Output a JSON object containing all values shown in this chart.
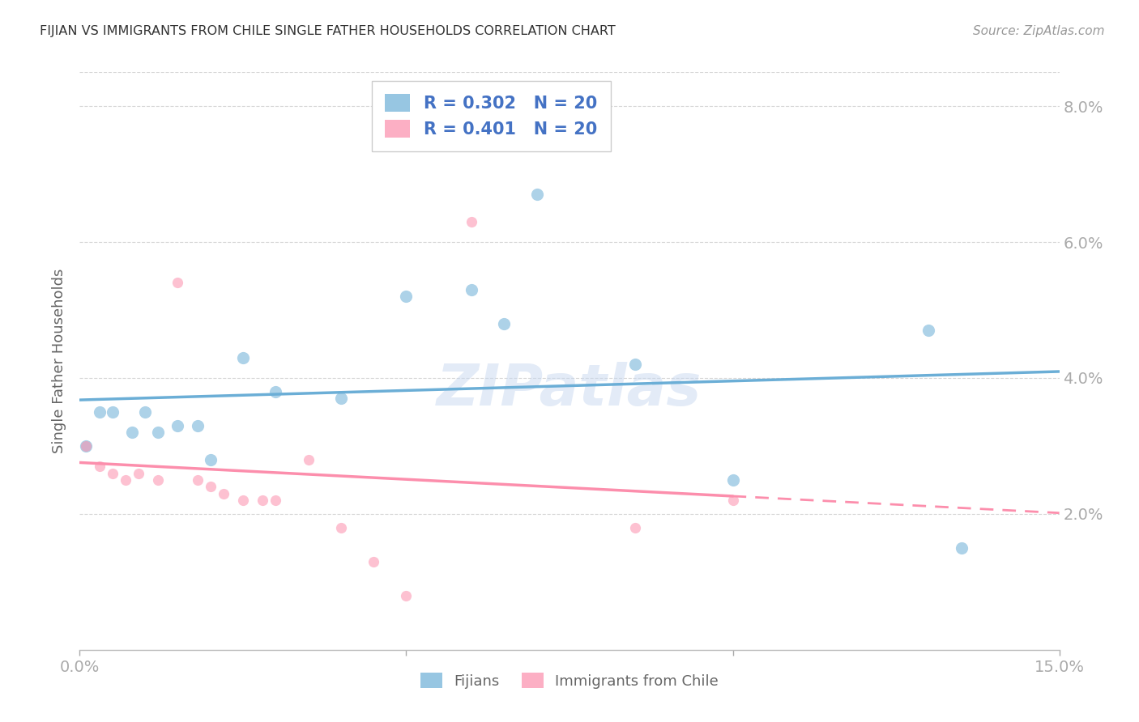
{
  "title": "FIJIAN VS IMMIGRANTS FROM CHILE SINGLE FATHER HOUSEHOLDS CORRELATION CHART",
  "source": "Source: ZipAtlas.com",
  "ylabel": "Single Father Households",
  "xlim": [
    0.0,
    0.15
  ],
  "ylim": [
    0.0,
    0.085
  ],
  "yticks": [
    0.0,
    0.02,
    0.04,
    0.06,
    0.08
  ],
  "yticklabels": [
    "",
    "2.0%",
    "4.0%",
    "6.0%",
    "8.0%"
  ],
  "xtick_positions": [
    0.0,
    0.15
  ],
  "xtick_labels": [
    "0.0%",
    "15.0%"
  ],
  "fijian_color": "#6baed6",
  "chile_color": "#fc8eac",
  "fijian_R": 0.302,
  "fijian_N": 20,
  "chile_R": 0.401,
  "chile_N": 20,
  "fijian_x": [
    0.001,
    0.003,
    0.005,
    0.008,
    0.01,
    0.012,
    0.015,
    0.018,
    0.02,
    0.025,
    0.03,
    0.04,
    0.05,
    0.06,
    0.065,
    0.07,
    0.085,
    0.1,
    0.13,
    0.135
  ],
  "fijian_y": [
    0.03,
    0.035,
    0.035,
    0.032,
    0.035,
    0.032,
    0.033,
    0.033,
    0.028,
    0.043,
    0.038,
    0.037,
    0.052,
    0.053,
    0.048,
    0.067,
    0.042,
    0.025,
    0.047,
    0.015
  ],
  "chile_x": [
    0.001,
    0.003,
    0.005,
    0.007,
    0.009,
    0.012,
    0.015,
    0.018,
    0.02,
    0.022,
    0.025,
    0.028,
    0.03,
    0.035,
    0.04,
    0.045,
    0.05,
    0.06,
    0.085,
    0.1
  ],
  "chile_y": [
    0.03,
    0.027,
    0.026,
    0.025,
    0.026,
    0.025,
    0.054,
    0.025,
    0.024,
    0.023,
    0.022,
    0.022,
    0.022,
    0.028,
    0.018,
    0.013,
    0.008,
    0.063,
    0.018,
    0.022
  ],
  "fijian_marker_size": 120,
  "chile_marker_size": 90,
  "background_color": "#ffffff",
  "grid_color": "#cccccc",
  "label_color": "#4472c4",
  "text_color": "#666666",
  "title_color": "#333333",
  "source_color": "#999999"
}
